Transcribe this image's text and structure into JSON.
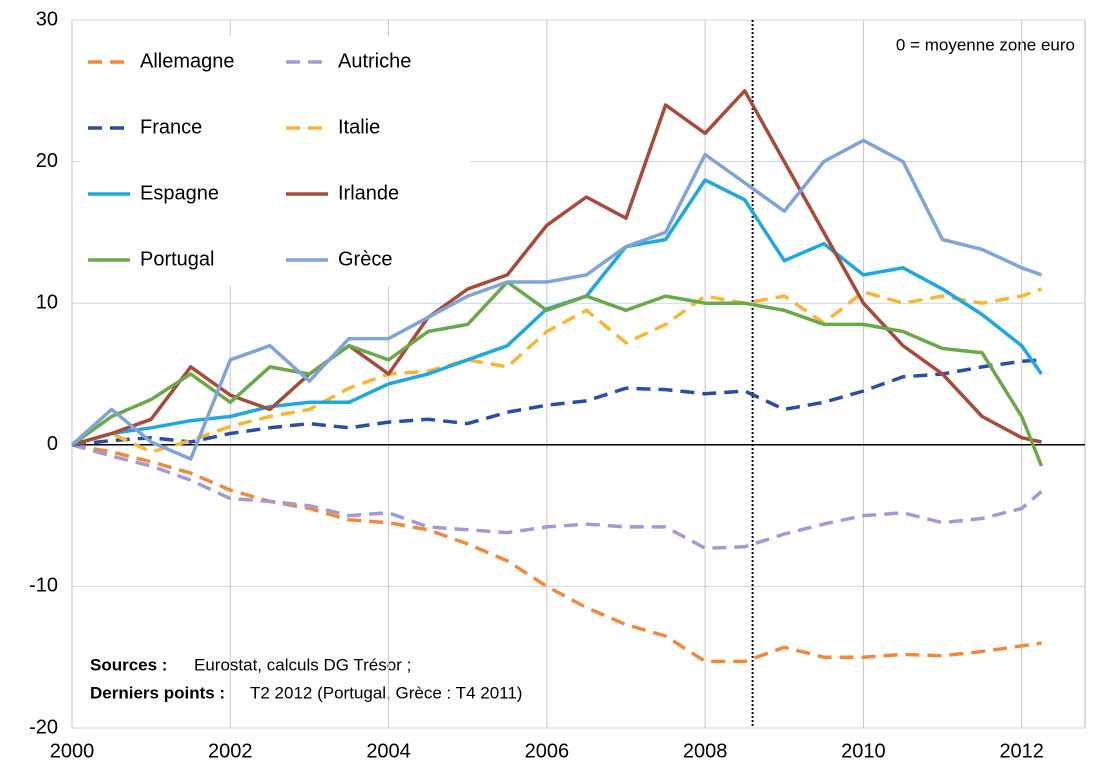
{
  "chart_data": {
    "type": "line",
    "annotation": "0 = moyenne zone euro",
    "sources_label": "Sources :",
    "sources_text": "Eurostat, calculs DG Trésor ;",
    "last_points_label": "Derniers points :",
    "last_points_text": "T2 2012 (Portugal, Grèce : T4 2011)",
    "x": [
      2000,
      2000.5,
      2001,
      2001.5,
      2002,
      2002.5,
      2003,
      2003.5,
      2004,
      2004.5,
      2005,
      2005.5,
      2006,
      2006.5,
      2007,
      2007.5,
      2008,
      2008.5,
      2009,
      2009.5,
      2010,
      2010.5,
      2011,
      2011.5,
      2012,
      2012.25
    ],
    "xlim": [
      2000,
      2012.8
    ],
    "xticks": [
      2000,
      2002,
      2004,
      2006,
      2008,
      2010,
      2012
    ],
    "ylim": [
      -20,
      30
    ],
    "yticks": [
      -20,
      -10,
      0,
      10,
      20,
      30
    ],
    "grid": true,
    "reference_line": {
      "x": 2008.6,
      "style": "dotted"
    },
    "series": [
      {
        "name": "Allemagne",
        "color": "#f08a3a",
        "dashed": true,
        "values": [
          0,
          -0.5,
          -1.2,
          -2,
          -3.2,
          -4,
          -4.5,
          -5.3,
          -5.5,
          -6,
          -7,
          -8.2,
          -10,
          -11.5,
          -12.7,
          -13.5,
          -15.3,
          -15.3,
          -14.3,
          -15,
          -15,
          -14.8,
          -14.9,
          -14.6,
          -14.2,
          -14
        ]
      },
      {
        "name": "Autriche",
        "color": "#a19bd4",
        "dashed": true,
        "values": [
          0,
          -0.8,
          -1.5,
          -2.5,
          -3.8,
          -4,
          -4.3,
          -5,
          -4.8,
          -5.8,
          -6,
          -6.2,
          -5.8,
          -5.6,
          -5.8,
          -5.8,
          -7.3,
          -7.2,
          -6.3,
          -5.6,
          -5,
          -4.8,
          -5.5,
          -5.2,
          -4.5,
          -3.3
        ]
      },
      {
        "name": "France",
        "color": "#2a4ea5",
        "dashed": true,
        "values": [
          0,
          0.3,
          0.5,
          0.2,
          0.8,
          1.2,
          1.5,
          1.2,
          1.6,
          1.8,
          1.5,
          2.3,
          2.8,
          3.1,
          4,
          3.9,
          3.6,
          3.8,
          2.5,
          3,
          3.8,
          4.8,
          5,
          5.5,
          5.9,
          6
        ]
      },
      {
        "name": "Italie",
        "color": "#f7b733",
        "dashed": true,
        "values": [
          0,
          0.8,
          -0.5,
          0.3,
          1.3,
          2,
          2.5,
          4,
          5,
          5.2,
          6,
          5.5,
          8,
          9.5,
          7.2,
          8.5,
          10.5,
          10,
          10.5,
          8.6,
          10.8,
          10,
          10.5,
          10,
          10.5,
          11
        ]
      },
      {
        "name": "Espagne",
        "color": "#1ea8e0",
        "dashed": false,
        "values": [
          0,
          0.8,
          1.2,
          1.7,
          2,
          2.7,
          3,
          3,
          4.3,
          5,
          6,
          7,
          9.6,
          10.5,
          14,
          14.5,
          18.7,
          17.3,
          13,
          14.2,
          12,
          12.5,
          11,
          9.2,
          7,
          5
        ]
      },
      {
        "name": "Irlande",
        "color": "#a84a3a",
        "dashed": false,
        "values": [
          0,
          0.8,
          1.8,
          5.5,
          3.5,
          2.5,
          5,
          7,
          5,
          9,
          11,
          12,
          15.5,
          17.5,
          16,
          24,
          22,
          25,
          20,
          15,
          10,
          7,
          5,
          2,
          0.5,
          0.2
        ]
      },
      {
        "name": "Portugal",
        "color": "#6aa84a",
        "dashed": false,
        "values": [
          0,
          2,
          3.2,
          5,
          3,
          5.5,
          5,
          7,
          6,
          8,
          8.5,
          11.5,
          9.5,
          10.5,
          9.5,
          10.5,
          10,
          10,
          9.5,
          8.5,
          8.5,
          8,
          6.8,
          6.5,
          2,
          -1.5
        ]
      },
      {
        "name": "Grèce",
        "color": "#80a4d6",
        "dashed": false,
        "values": [
          0,
          2.5,
          0.2,
          -1,
          6,
          7,
          4.5,
          7.5,
          7.5,
          9,
          10.5,
          11.5,
          11.5,
          12,
          14,
          15,
          20.5,
          18.5,
          16.5,
          20,
          21.5,
          20,
          14.5,
          13.8,
          12.5,
          12
        ]
      }
    ]
  }
}
